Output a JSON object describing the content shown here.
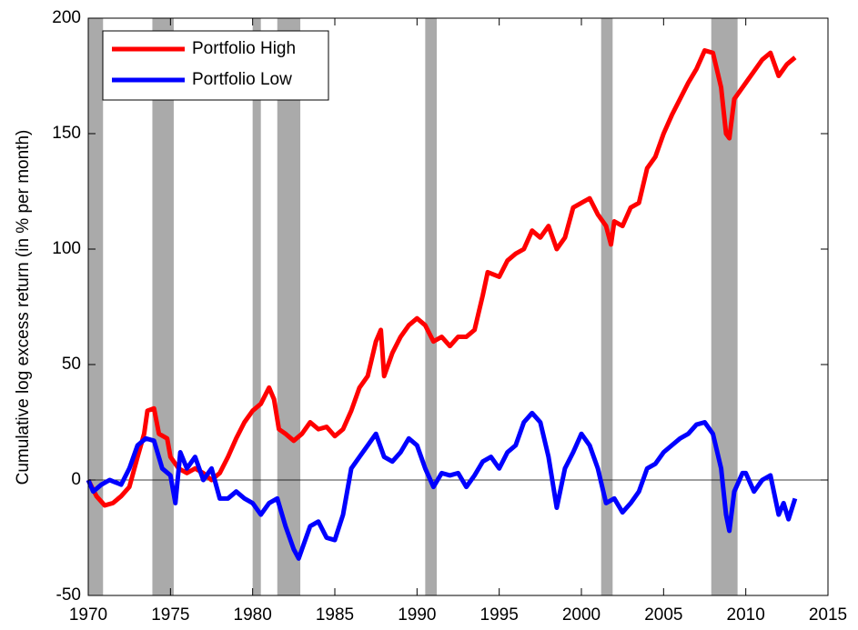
{
  "chart_data": {
    "type": "line",
    "ylabel": "Cumulative log excess return (in % per month)",
    "xlim": [
      1970,
      2015
    ],
    "xticks": [
      1970,
      1975,
      1980,
      1985,
      1990,
      1995,
      2000,
      2005,
      2010,
      2015
    ],
    "ylim": [
      -50,
      200
    ],
    "yticks": [
      -50,
      0,
      50,
      100,
      150,
      200
    ],
    "legend": "upper left",
    "recessions": [
      [
        1970,
        1970.9
      ],
      [
        1973.9,
        1975.2
      ],
      [
        1980,
        1980.5
      ],
      [
        1981.5,
        1982.9
      ],
      [
        1990.5,
        1991.2
      ],
      [
        2001.2,
        2001.9
      ],
      [
        2007.9,
        2009.5
      ]
    ],
    "recession_color": "#aaaaaa",
    "series": [
      {
        "name": "Portfolio High",
        "color": "#ff0000",
        "x": [
          1970,
          1970.5,
          1971,
          1971.5,
          1972,
          1972.5,
          1973,
          1973.4,
          1973.6,
          1974,
          1974.3,
          1974.8,
          1975,
          1975.5,
          1976,
          1976.5,
          1977,
          1977.5,
          1978,
          1978.5,
          1979,
          1979.5,
          1980,
          1980.5,
          1981,
          1981.3,
          1981.6,
          1982,
          1982.5,
          1983,
          1983.5,
          1984,
          1984.5,
          1985,
          1985.5,
          1986,
          1986.5,
          1987,
          1987.5,
          1987.8,
          1988,
          1988.5,
          1989,
          1989.5,
          1990,
          1990.5,
          1991,
          1991.5,
          1992,
          1992.5,
          1993,
          1993.5,
          1994,
          1994.3,
          1995,
          1995.5,
          1996,
          1996.5,
          1997,
          1997.5,
          1998,
          1998.5,
          1999,
          1999.5,
          2000,
          2000.5,
          2001,
          2001.5,
          2001.8,
          2002,
          2002.5,
          2003,
          2003.5,
          2004,
          2004.5,
          2005,
          2005.5,
          2006,
          2006.5,
          2007,
          2007.5,
          2008,
          2008.5,
          2008.8,
          2009,
          2009.3,
          2010,
          2010.5,
          2011,
          2011.5,
          2012,
          2012.5,
          2013
        ],
        "values": [
          0,
          -7,
          -11,
          -10,
          -7,
          -3,
          10,
          20,
          30,
          31,
          20,
          18,
          10,
          5,
          3,
          5,
          3,
          0,
          3,
          10,
          18,
          25,
          30,
          33,
          40,
          35,
          22,
          20,
          17,
          20,
          25,
          22,
          23,
          19,
          22,
          30,
          40,
          45,
          60,
          65,
          45,
          55,
          62,
          67,
          70,
          67,
          60,
          62,
          58,
          62,
          62,
          65,
          80,
          90,
          88,
          95,
          98,
          100,
          108,
          105,
          110,
          100,
          105,
          118,
          120,
          122,
          115,
          110,
          102,
          112,
          110,
          118,
          120,
          135,
          140,
          150,
          158,
          165,
          172,
          178,
          186,
          185,
          170,
          150,
          148,
          165,
          172,
          177,
          182,
          185,
          175,
          180,
          183
        ]
      },
      {
        "name": "Portfolio Low",
        "color": "#0000ff",
        "x": [
          1970,
          1970.3,
          1970.8,
          1971.3,
          1972,
          1972.5,
          1973,
          1973.5,
          1974,
          1974.5,
          1975,
          1975.3,
          1975.6,
          1976,
          1976.5,
          1977,
          1977.5,
          1978,
          1978.5,
          1979,
          1979.5,
          1980,
          1980.5,
          1981,
          1981.5,
          1982,
          1982.5,
          1982.8,
          1983,
          1983.5,
          1984,
          1984.5,
          1985,
          1985.5,
          1986,
          1986.5,
          1987,
          1987.5,
          1988,
          1988.5,
          1989,
          1989.5,
          1990,
          1990.5,
          1991,
          1991.5,
          1992,
          1992.5,
          1993,
          1993.5,
          1994,
          1994.5,
          1995,
          1995.5,
          1996,
          1996.5,
          1997,
          1997.5,
          1998,
          1998.5,
          1999,
          1999.5,
          2000,
          2000.5,
          2001,
          2001.5,
          2002,
          2002.5,
          2003,
          2003.5,
          2004,
          2004.5,
          2005,
          2005.5,
          2006,
          2006.5,
          2007,
          2007.5,
          2008,
          2008.5,
          2008.8,
          2009,
          2009.3,
          2009.8,
          2010,
          2010.5,
          2011,
          2011.5,
          2012,
          2012.3,
          2012.6,
          2013
        ],
        "values": [
          0,
          -5,
          -2,
          0,
          -2,
          5,
          15,
          18,
          17,
          5,
          2,
          -10,
          12,
          5,
          10,
          0,
          5,
          -8,
          -8,
          -5,
          -8,
          -10,
          -15,
          -10,
          -8,
          -20,
          -30,
          -34,
          -30,
          -20,
          -18,
          -25,
          -26,
          -15,
          5,
          10,
          15,
          20,
          10,
          8,
          12,
          18,
          15,
          5,
          -3,
          3,
          2,
          3,
          -3,
          2,
          8,
          10,
          5,
          12,
          15,
          25,
          29,
          25,
          10,
          -12,
          5,
          12,
          20,
          15,
          5,
          -10,
          -8,
          -14,
          -10,
          -5,
          5,
          7,
          12,
          15,
          18,
          20,
          24,
          25,
          20,
          5,
          -15,
          -22,
          -5,
          3,
          3,
          -5,
          0,
          2,
          -15,
          -10,
          -17,
          -8
        ]
      }
    ]
  }
}
